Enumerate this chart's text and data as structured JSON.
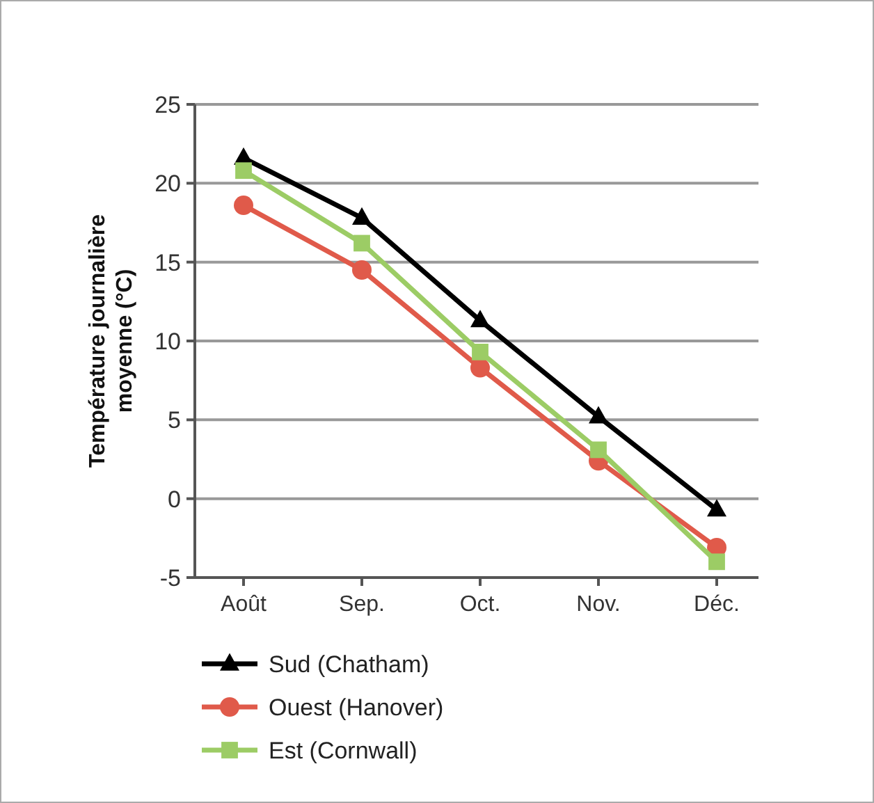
{
  "chart_data": {
    "type": "line",
    "ylabel": "Température journalière moyenne (°C)",
    "categories": [
      "Août",
      "Sep.",
      "Oct.",
      "Nov.",
      "Déc."
    ],
    "series": [
      {
        "name": "Sud (Chatham)",
        "color": "#000000",
        "marker": "triangle",
        "values": [
          21.6,
          17.8,
          11.3,
          5.2,
          -0.7
        ]
      },
      {
        "name": "Ouest (Hanover)",
        "color": "#e05a4a",
        "marker": "circle",
        "values": [
          18.6,
          14.5,
          8.3,
          2.4,
          -3.1
        ]
      },
      {
        "name": "Est (Cornwall)",
        "color": "#9ccc65",
        "marker": "square",
        "values": [
          20.8,
          16.2,
          9.3,
          3.1,
          -4.0
        ]
      }
    ],
    "ylim": [
      -5,
      25
    ],
    "yticks": [
      -5,
      0,
      5,
      10,
      15,
      20,
      25
    ],
    "grid": "y",
    "legend": "bottom"
  }
}
